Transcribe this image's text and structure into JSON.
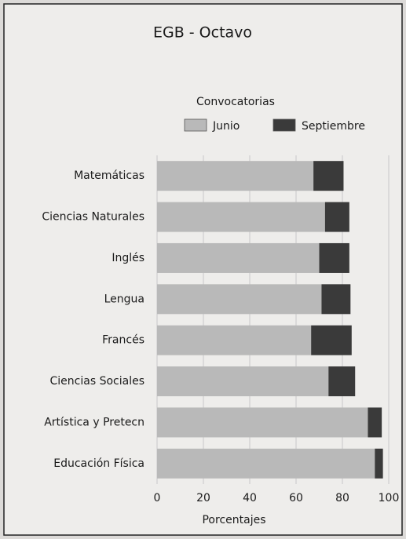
{
  "chart_data": {
    "type": "stacked_barh",
    "title": "EGB - Octavo",
    "legend_title": "Convocatorias",
    "categories": [
      "Matemáticas",
      "Ciencias Naturales",
      "Inglés",
      "Lengua",
      "Francés",
      "Ciencias Sociales",
      "Artística y Pretecn",
      "Educación Física"
    ],
    "series": [
      {
        "name": "Junio",
        "color": "#b9b9b9",
        "values": [
          67.5,
          72.5,
          70,
          71,
          66.5,
          74,
          91,
          94
        ]
      },
      {
        "name": "Septiembre",
        "color": "#3a3a3a",
        "values": [
          13,
          10.5,
          13,
          12.5,
          17.5,
          11.5,
          6,
          3.5
        ]
      }
    ],
    "xlabel": "Porcentajes",
    "xlim": [
      0,
      100
    ],
    "xticks": [
      0,
      20,
      40,
      60,
      80,
      100
    ],
    "grid": true
  }
}
